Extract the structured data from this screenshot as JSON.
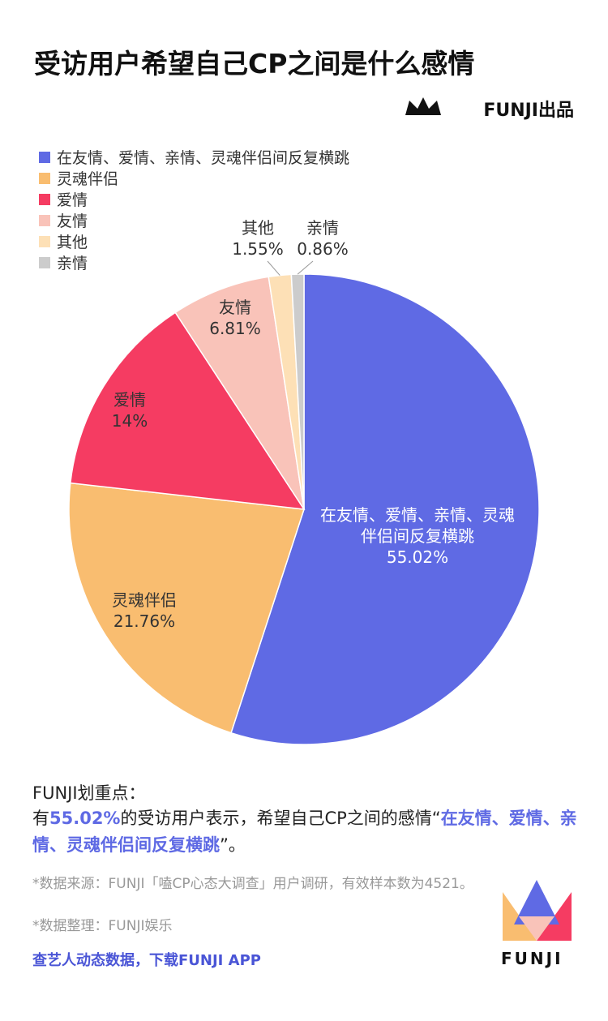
{
  "header": {
    "title": "受访用户希望自己CP之间是什么感情",
    "brand": "FUNJI出品"
  },
  "chart_data": {
    "type": "pie",
    "categories": [
      "在友情、爱情、亲情、灵魂伴侣间反复横跳",
      "灵魂伴侣",
      "爱情",
      "友情",
      "其他",
      "亲情"
    ],
    "values": [
      55.02,
      21.76,
      14,
      6.81,
      1.55,
      0.86
    ],
    "value_labels": [
      "55.02%",
      "21.76%",
      "14%",
      "6.81%",
      "1.55%",
      "0.86%"
    ],
    "colors": [
      "#5f6ae4",
      "#f9bd70",
      "#f53c62",
      "#f9c3b9",
      "#fde0b6",
      "#cccccc"
    ],
    "legend": "top-left"
  },
  "note": {
    "heading": "FUNJI划重点：",
    "parts": [
      {
        "text": "有",
        "bold": false
      },
      {
        "text": "55.02%",
        "bold": true
      },
      {
        "text": "的受访用户表示，希望自己CP之间的感情“",
        "bold": false
      },
      {
        "text": "在友情、爱情、亲情、灵魂伴侣间反复横跳",
        "bold": true
      },
      {
        "text": "”。",
        "bold": false
      }
    ]
  },
  "sources": [
    "*数据来源：FUNJI「嗑CP心态大调查」用户调研，有效样本数为4521。",
    "*数据整理：FUNJI娱乐"
  ],
  "footer": {
    "cta": "查艺人动态数据，下载FUNJI APP",
    "logo_text": "FUNJI"
  }
}
